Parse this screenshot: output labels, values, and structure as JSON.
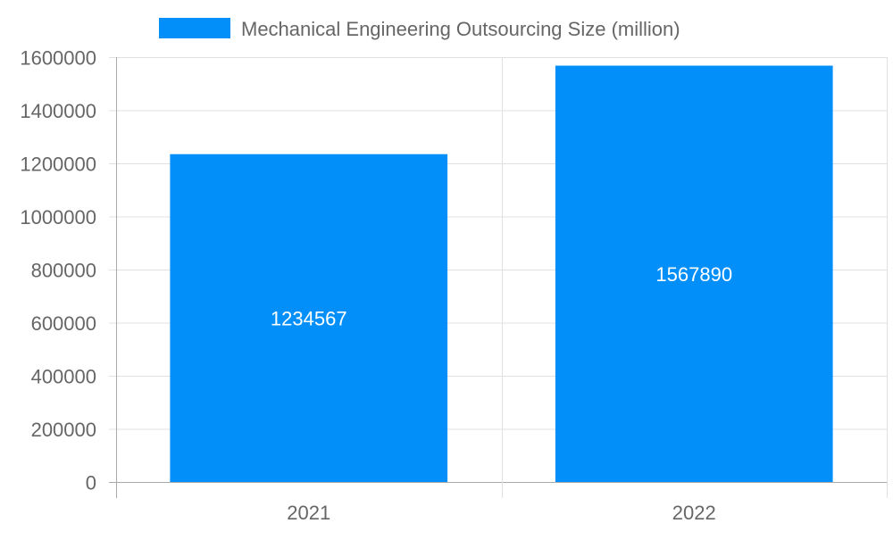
{
  "chart_data": {
    "type": "bar",
    "categories": [
      "2021",
      "2022"
    ],
    "series": [
      {
        "name": "Mechanical Engineering Outsourcing Size (million)",
        "values": [
          1234567,
          1567890
        ],
        "color": "#038ffa"
      }
    ],
    "data_labels": [
      "1234567",
      "1567890"
    ],
    "yticks": [
      "0",
      "200000",
      "400000",
      "600000",
      "800000",
      "1000000",
      "1200000",
      "1400000",
      "1600000"
    ],
    "ylim": [
      0,
      1600000
    ],
    "grid": true,
    "legend_position": "top",
    "title": "",
    "xlabel": "",
    "ylabel": ""
  }
}
